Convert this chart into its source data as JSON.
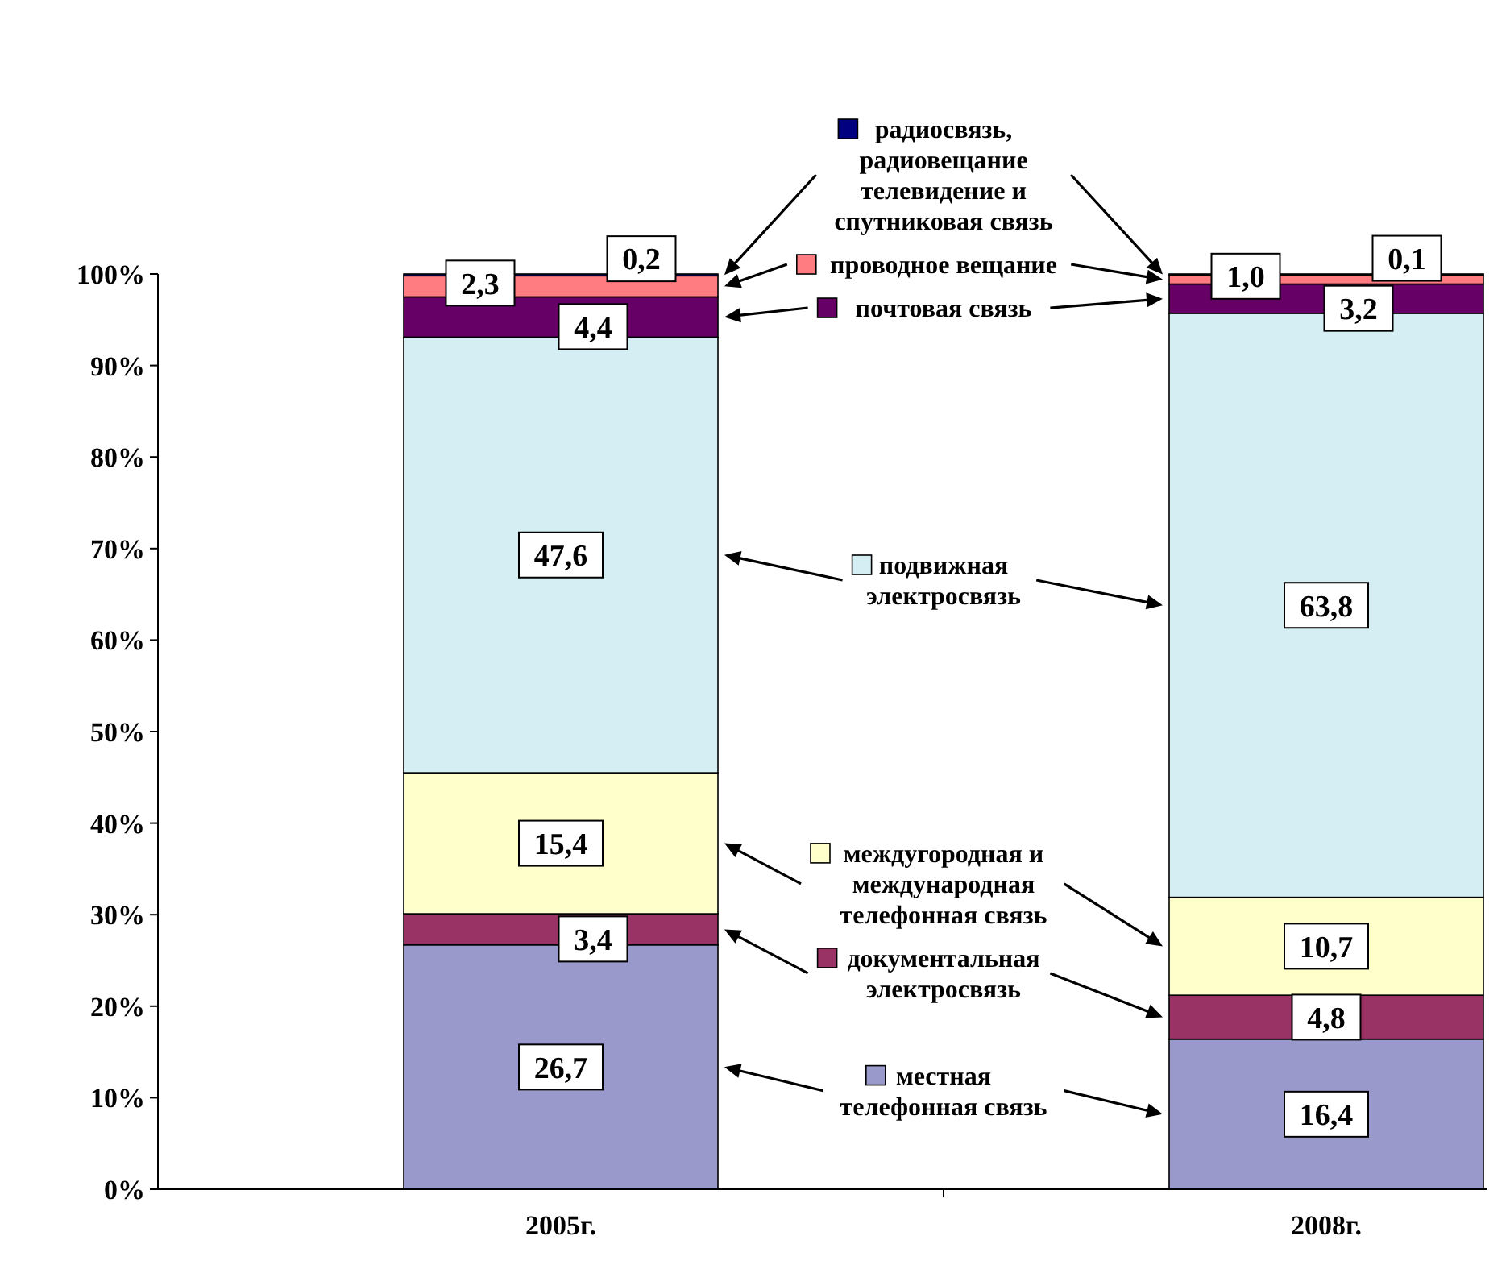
{
  "chart_data": {
    "type": "bar",
    "stacked": true,
    "categories": [
      "2005г.",
      "2008г."
    ],
    "ylim": [
      0,
      100
    ],
    "yticks": [
      {
        "value": 0,
        "label": "0%"
      },
      {
        "value": 10,
        "label": "10%"
      },
      {
        "value": 20,
        "label": "20%"
      },
      {
        "value": 30,
        "label": "30%"
      },
      {
        "value": 40,
        "label": "40%"
      },
      {
        "value": 50,
        "label": "50%"
      },
      {
        "value": 60,
        "label": "60%"
      },
      {
        "value": 70,
        "label": "70%"
      },
      {
        "value": 80,
        "label": "80%"
      },
      {
        "value": 90,
        "label": "90%"
      },
      {
        "value": 100,
        "label": "100%"
      }
    ],
    "grid": false,
    "legend": "center",
    "series": [
      {
        "name": "местная телефонная связь",
        "color": "#9999cc",
        "values": [
          26.7,
          16.4
        ],
        "value_labels": [
          "26,7",
          "16,4"
        ]
      },
      {
        "name": "документальная электросвязь",
        "color": "#993366",
        "values": [
          3.4,
          4.8
        ],
        "value_labels": [
          "3,4",
          "4,8"
        ]
      },
      {
        "name": "междугородная и международная телефонная связь",
        "color": "#ffffcc",
        "values": [
          15.4,
          10.7
        ],
        "value_labels": [
          "15,4",
          "10,7"
        ]
      },
      {
        "name": "подвижная электросвязь",
        "color": "#d4eef4",
        "values": [
          47.6,
          63.8
        ],
        "value_labels": [
          "47,6",
          "63,8"
        ]
      },
      {
        "name": "почтовая связь",
        "color": "#660066",
        "values": [
          4.4,
          3.2
        ],
        "value_labels": [
          "4,4",
          "3,2"
        ]
      },
      {
        "name": "проводное вещание",
        "color": "#ff7c80",
        "values": [
          2.3,
          1.0
        ],
        "value_labels": [
          "2,3",
          "1,0"
        ]
      },
      {
        "name": "радиосвязь, радиовещание телевидение и спутниковая связь",
        "color": "#000080",
        "values": [
          0.2,
          0.1
        ],
        "value_labels": [
          "0,2",
          "0,1"
        ]
      }
    ]
  }
}
